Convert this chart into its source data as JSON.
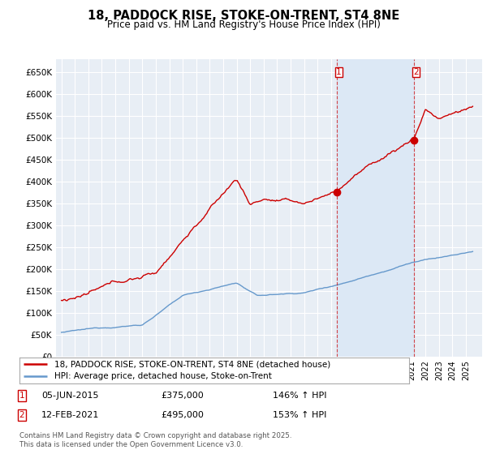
{
  "title": "18, PADDOCK RISE, STOKE-ON-TRENT, ST4 8NE",
  "subtitle": "Price paid vs. HM Land Registry's House Price Index (HPI)",
  "red_line_label": "18, PADDOCK RISE, STOKE-ON-TRENT, ST4 8NE (detached house)",
  "blue_line_label": "HPI: Average price, detached house, Stoke-on-Trent",
  "annotation1_date": "05-JUN-2015",
  "annotation1_price": "£375,000",
  "annotation1_hpi": "146% ↑ HPI",
  "annotation2_date": "12-FEB-2021",
  "annotation2_price": "£495,000",
  "annotation2_hpi": "153% ↑ HPI",
  "footer": "Contains HM Land Registry data © Crown copyright and database right 2025.\nThis data is licensed under the Open Government Licence v3.0.",
  "ylim": [
    0,
    680000
  ],
  "yticks": [
    0,
    50000,
    100000,
    150000,
    200000,
    250000,
    300000,
    350000,
    400000,
    450000,
    500000,
    550000,
    600000,
    650000
  ],
  "ytick_labels": [
    "£0",
    "£50K",
    "£100K",
    "£150K",
    "£200K",
    "£250K",
    "£300K",
    "£350K",
    "£400K",
    "£450K",
    "£500K",
    "£550K",
    "£600K",
    "£650K"
  ],
  "background_color": "#ffffff",
  "plot_bg_color": "#e8eef5",
  "grid_color": "#ffffff",
  "red_color": "#cc0000",
  "blue_color": "#6699cc",
  "shade_color": "#dce8f5",
  "marker1_x": 2015.43,
  "marker1_y": 375000,
  "marker2_x": 2021.12,
  "marker2_y": 495000,
  "vline1_x": 2015.43,
  "vline2_x": 2021.12,
  "xmin": 1995,
  "xmax": 2025.5
}
